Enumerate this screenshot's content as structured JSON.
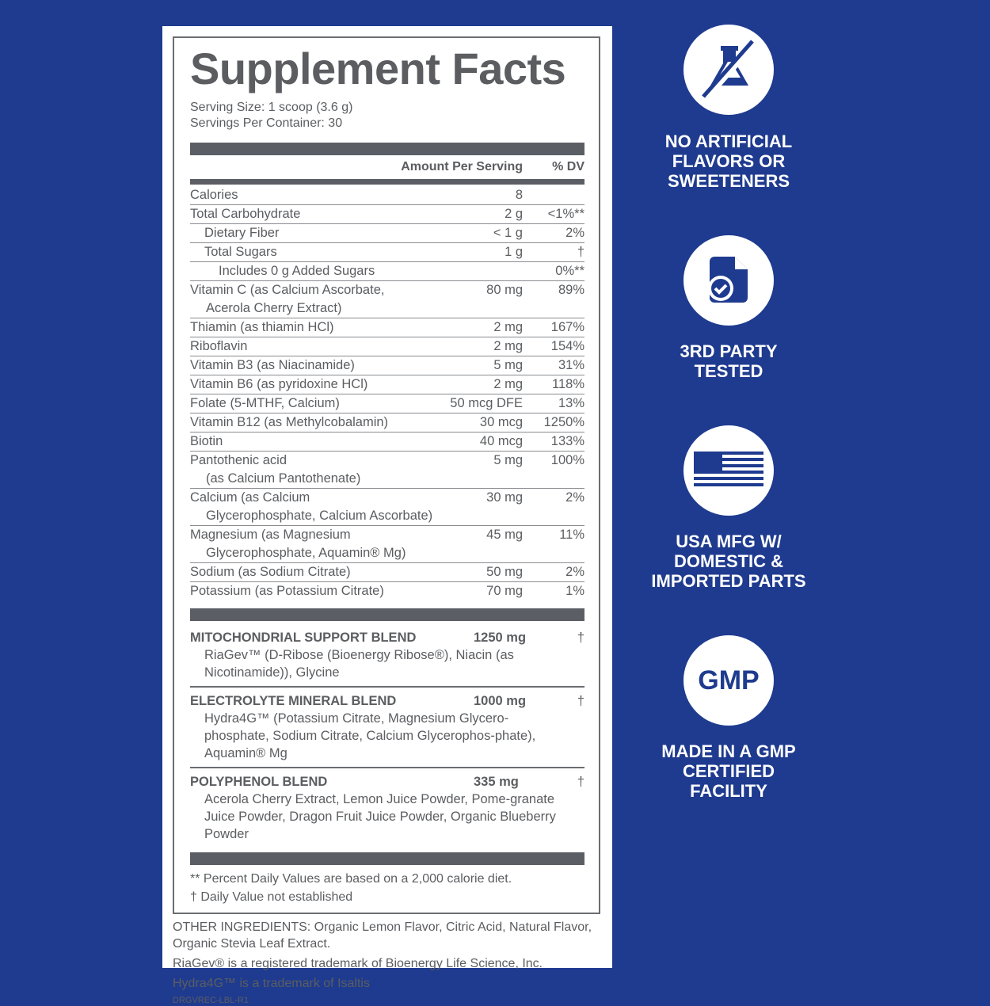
{
  "title": "Supplement Facts",
  "serving_size": "Serving Size: 1 scoop (3.6 g)",
  "servings_per_container": "Servings Per Container: 30",
  "header": {
    "amount": "Amount Per Serving",
    "dv": "% DV"
  },
  "nutrients": [
    {
      "name": "Calories",
      "amount": "8",
      "dv": ""
    },
    {
      "name": "Total Carbohydrate",
      "amount": "2 g",
      "dv": "<1%**"
    },
    {
      "name": "Dietary Fiber",
      "amount": "< 1 g",
      "dv": "2%"
    },
    {
      "name": "Total Sugars",
      "amount": "1 g",
      "dv": "†"
    },
    {
      "name": "Includes 0 g Added Sugars",
      "amount": "",
      "dv": "0%**"
    },
    {
      "name": "Vitamin C (as Calcium Ascorbate,",
      "name2": "Acerola Cherry Extract)",
      "amount": "80 mg",
      "dv": "89%"
    },
    {
      "name": "Thiamin (as thiamin HCl)",
      "amount": "2 mg",
      "dv": "167%"
    },
    {
      "name": "Riboflavin",
      "amount": "2 mg",
      "dv": "154%"
    },
    {
      "name": "Vitamin B3 (as Niacinamide)",
      "amount": "5 mg",
      "dv": "31%"
    },
    {
      "name": "Vitamin B6 (as pyridoxine HCl)",
      "amount": "2 mg",
      "dv": "118%"
    },
    {
      "name": "Folate (5-MTHF, Calcium)",
      "amount": "50 mcg DFE",
      "dv": "13%"
    },
    {
      "name": "Vitamin B12 (as Methylcobalamin)",
      "amount": "30 mcg",
      "dv": "1250%"
    },
    {
      "name": "Biotin",
      "amount": "40 mcg",
      "dv": "133%"
    },
    {
      "name": "Pantothenic acid",
      "name2": "(as Calcium Pantothenate)",
      "amount": "5 mg",
      "dv": "100%"
    },
    {
      "name": "Calcium (as Calcium",
      "name2": "Glycerophosphate, Calcium Ascorbate)",
      "amount": "30 mg",
      "dv": "2%"
    },
    {
      "name": "Magnesium (as Magnesium",
      "name2": "Glycerophosphate, Aquamin® Mg)",
      "amount": "45 mg",
      "dv": "11%"
    },
    {
      "name": "Sodium (as Sodium Citrate)",
      "amount": "50 mg",
      "dv": "2%"
    },
    {
      "name": "Potassium (as Potassium Citrate)",
      "amount": "70 mg",
      "dv": "1%"
    }
  ],
  "blends": [
    {
      "name": "MITOCHONDRIAL SUPPORT BLEND",
      "amount": "1250 mg",
      "dv": "†",
      "desc": "RiaGev™ (D-Ribose (Bioenergy Ribose®), Niacin (as Nicotinamide)), Glycine"
    },
    {
      "name": "ELECTROLYTE MINERAL BLEND",
      "amount": "1000 mg",
      "dv": "†",
      "desc": "Hydra4G™ (Potassium Citrate, Magnesium Glycero-phosphate, Sodium Citrate, Calcium Glycerophos-phate), Aquamin® Mg"
    },
    {
      "name": "POLYPHENOL BLEND",
      "amount": "335 mg",
      "dv": "†",
      "desc": "Acerola Cherry Extract, Lemon Juice Powder, Pome-granate Juice Powder, Dragon Fruit Juice Powder, Organic Blueberry Powder"
    }
  ],
  "footnotes": [
    "** Percent Daily Values are based on a 2,000 calorie diet.",
    "† Daily Value not established"
  ],
  "other_ingredients": "OTHER INGREDIENTS: Organic Lemon Flavor, Citric Acid, Natural Flavor, Organic Stevia Leaf Extract.",
  "trademark1": "RiaGev® is a registered trademark of Bioenergy Life Science, Inc.",
  "trademark2": "Hydra4G™ is a trademark of Isaltis",
  "label_code": "DRGVREC-LBL-R1",
  "badges": [
    {
      "icon": "no-flask-icon",
      "text": "NO ARTIFICIAL\nFLAVORS OR\nSWEETENERS"
    },
    {
      "icon": "tested-document-icon",
      "text": "3RD PARTY\nTESTED"
    },
    {
      "icon": "us-flag-icon",
      "text": "USA MFG W/\nDOMESTIC &\nIMPORTED PARTS"
    },
    {
      "icon": "gmp-icon",
      "label": "GMP",
      "text": "MADE IN A GMP\nCERTIFIED\nFACILITY"
    }
  ],
  "colors": {
    "background": "#1f3b8f",
    "label_text": "#5b5d60"
  }
}
